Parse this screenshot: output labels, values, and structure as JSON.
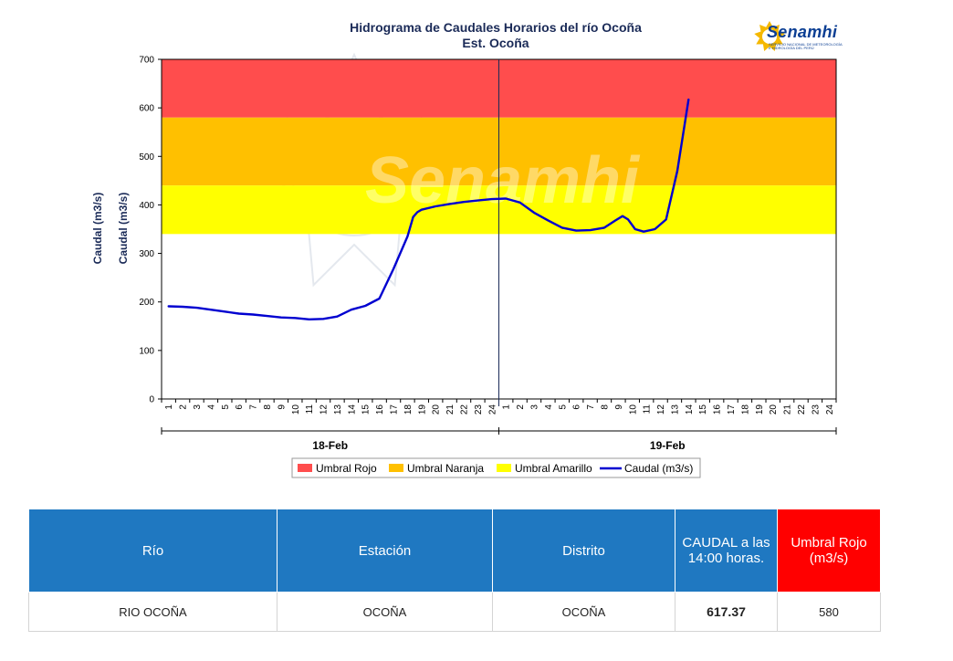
{
  "chart_data": {
    "type": "line",
    "title": "Hidrograma de Caudales Horarios del río Ocoña",
    "subtitle": "Est. Ocoña",
    "ylabel": "Caudal  (m3/s)",
    "ylim": [
      0,
      700
    ],
    "yticks": [
      0,
      100,
      200,
      300,
      400,
      500,
      600,
      700
    ],
    "x_tick_labels": [
      "1",
      "2",
      "3",
      "4",
      "5",
      "6",
      "7",
      "8",
      "9",
      "10",
      "11",
      "12",
      "13",
      "14",
      "15",
      "16",
      "17",
      "18",
      "19",
      "20",
      "21",
      "22",
      "23",
      "24",
      "1",
      "2",
      "3",
      "4",
      "5",
      "6",
      "7",
      "8",
      "9",
      "10",
      "11",
      "12",
      "13",
      "14",
      "15",
      "16",
      "17",
      "18",
      "19",
      "20",
      "21",
      "22",
      "23",
      "24"
    ],
    "days": [
      {
        "label": "18-Feb",
        "start_index": 0,
        "end_index": 23
      },
      {
        "label": "19-Feb",
        "start_index": 24,
        "end_index": 47
      }
    ],
    "thresholds": [
      {
        "name": "Umbral Rojo",
        "color": "#ff4d4d",
        "from": 580,
        "to": 700
      },
      {
        "name": "Umbral Naranja",
        "color": "#ffc000",
        "from": 440,
        "to": 580
      },
      {
        "name": "Umbral Amarillo",
        "color": "#ffff00",
        "from": 340,
        "to": 440
      }
    ],
    "series": [
      {
        "name": "Caudal (m3/s)",
        "color": "#0000d0",
        "points": [
          [
            0,
            191
          ],
          [
            1,
            190
          ],
          [
            2,
            188
          ],
          [
            3,
            184
          ],
          [
            4,
            180
          ],
          [
            5,
            176
          ],
          [
            6,
            174
          ],
          [
            7,
            171
          ],
          [
            8,
            168
          ],
          [
            9,
            167
          ],
          [
            10,
            164
          ],
          [
            11,
            165
          ],
          [
            12,
            170
          ],
          [
            13,
            184
          ],
          [
            14,
            192
          ],
          [
            15,
            207
          ],
          [
            16,
            268
          ],
          [
            17,
            335
          ],
          [
            17.4,
            375
          ],
          [
            17.7,
            385
          ],
          [
            18,
            390
          ],
          [
            19,
            397
          ],
          [
            20,
            402
          ],
          [
            21,
            406
          ],
          [
            22,
            409
          ],
          [
            23,
            412
          ],
          [
            24,
            413
          ],
          [
            25,
            405
          ],
          [
            26,
            384
          ],
          [
            27,
            368
          ],
          [
            28,
            353
          ],
          [
            29,
            347
          ],
          [
            30,
            348
          ],
          [
            31,
            353
          ],
          [
            31.8,
            368
          ],
          [
            32.3,
            377
          ],
          [
            32.7,
            370
          ],
          [
            33.2,
            350
          ],
          [
            33.8,
            345
          ],
          [
            34.6,
            350
          ],
          [
            35.4,
            370
          ],
          [
            36.2,
            470
          ],
          [
            37,
            617
          ]
        ]
      }
    ],
    "legend": [
      "Umbral Rojo",
      "Umbral Naranja",
      "Umbral Amarillo",
      "Caudal (m3/s)"
    ]
  },
  "logo": {
    "name": "Senamhi",
    "sub": "SERVICIO NACIONAL DE METEOROLOGÍA E HIDROLOGÍA DEL PERÚ",
    "color": "#0b3e93",
    "sun_color": "#f5b800"
  },
  "watermark": "Senamhi",
  "table": {
    "headers": [
      "Río",
      "Estación",
      "Distrito",
      "CAUDAL a las 14:00 horas.",
      "Umbral Rojo (m3/s)"
    ],
    "row": [
      "RIO OCOÑA",
      "OCOÑA",
      "OCOÑA",
      "617.37",
      "580"
    ],
    "header_color": "#1f78c1",
    "red_color": "#ff0000"
  }
}
